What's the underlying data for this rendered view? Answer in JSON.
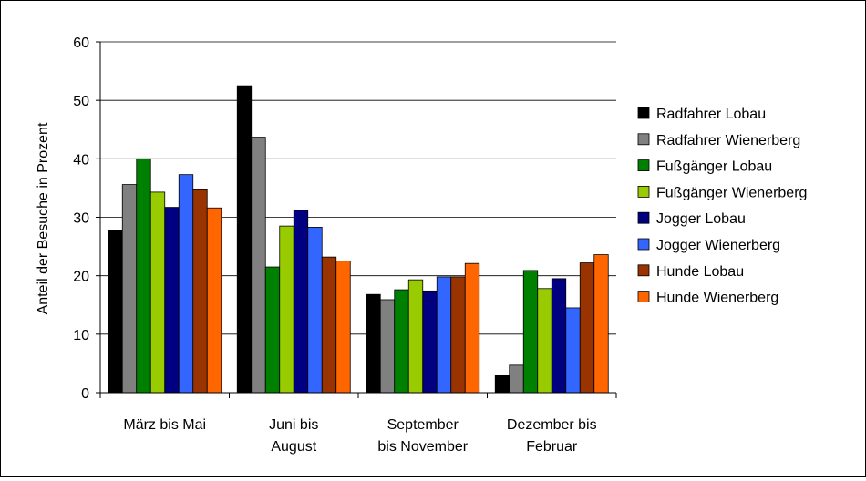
{
  "chart_data": {
    "type": "bar",
    "title": "",
    "xlabel": "",
    "ylabel": "Anteil der Besuche in Prozent",
    "ylim": [
      0,
      60
    ],
    "yticks": [
      "0",
      "10",
      "20",
      "30",
      "40",
      "50",
      "60"
    ],
    "grid": true,
    "legend_position": "right",
    "categories": [
      [
        "März bis Mai"
      ],
      [
        "Juni bis",
        "August"
      ],
      [
        "September",
        "bis November"
      ],
      [
        "Dezember bis",
        "Februar"
      ]
    ],
    "series": [
      {
        "name": "Radfahrer Lobau",
        "color": "#000000",
        "values": [
          27.8,
          52.5,
          16.8,
          2.9
        ]
      },
      {
        "name": "Radfahrer Wienerberg",
        "color": "#808080",
        "values": [
          35.6,
          43.7,
          15.9,
          4.7
        ]
      },
      {
        "name": "Fußgänger Lobau",
        "color": "#008000",
        "values": [
          40.0,
          21.5,
          17.6,
          20.9
        ]
      },
      {
        "name": "Fußgänger Wienerberg",
        "color": "#99CC00",
        "values": [
          34.3,
          28.5,
          19.3,
          17.8
        ]
      },
      {
        "name": "Jogger Lobau",
        "color": "#000080",
        "values": [
          31.7,
          31.2,
          17.4,
          19.5
        ]
      },
      {
        "name": "Jogger Wienerberg",
        "color": "#3366FF",
        "values": [
          37.3,
          28.3,
          19.8,
          14.5
        ]
      },
      {
        "name": "Hunde Lobau",
        "color": "#993300",
        "values": [
          34.7,
          23.2,
          19.8,
          22.2
        ]
      },
      {
        "name": "Hunde Wienerberg",
        "color": "#FF6600",
        "values": [
          31.6,
          22.5,
          22.1,
          23.6
        ]
      }
    ]
  }
}
